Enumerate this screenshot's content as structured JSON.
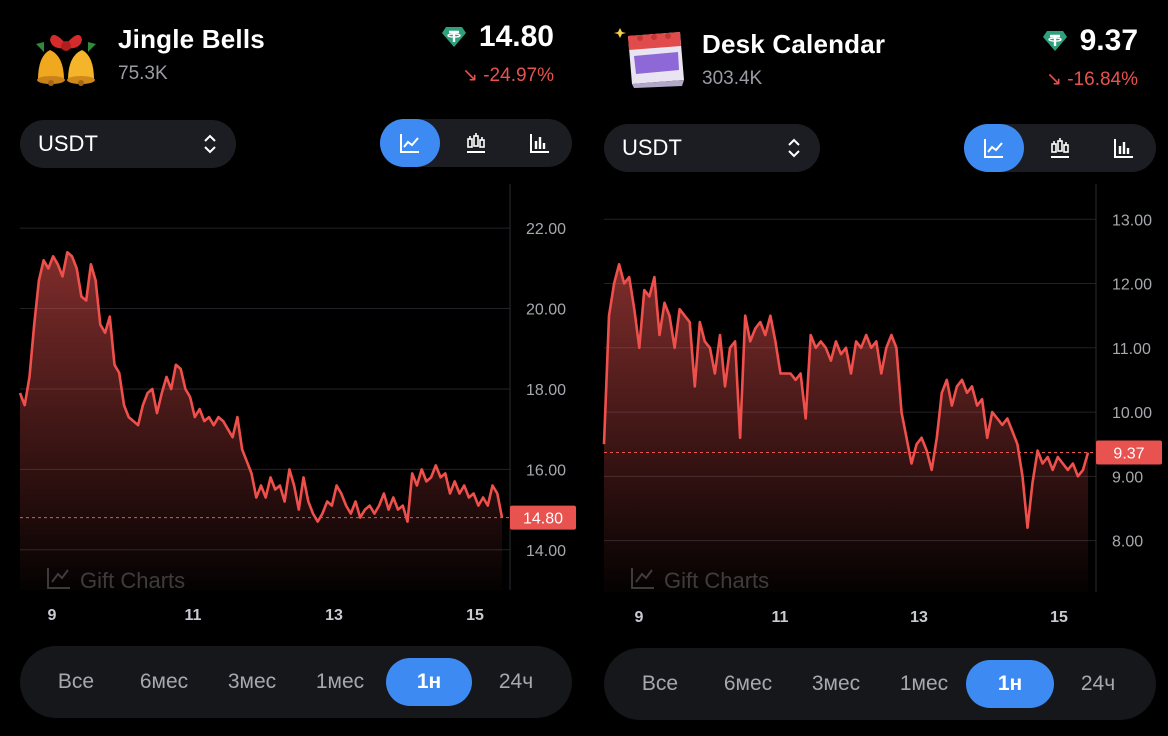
{
  "panels": [
    {
      "icon": "jingle-bells-icon",
      "name": "Jingle Bells",
      "volume": "75.3K",
      "price": "14.80",
      "change": "↘ -24.97%",
      "currency": "USDT",
      "chart_types": [
        "line-chart-icon",
        "candlestick-icon",
        "bar-chart-icon"
      ],
      "active_chart_type": 0,
      "ranges": [
        "Все",
        "6мес",
        "3мес",
        "1мес",
        "1н",
        "24ч"
      ],
      "active_range": 4,
      "chart_data": {
        "type": "area",
        "x_labels": [
          "9",
          "11",
          "13",
          "15"
        ],
        "y_labels": [
          "22.00",
          "20.00",
          "18.00",
          "16.00",
          "14.00"
        ],
        "ylim": [
          13.0,
          22.7
        ],
        "current_value": 14.8,
        "current_label": "14.80",
        "watermark": "Gift Charts",
        "values": [
          17.9,
          17.6,
          18.3,
          19.6,
          20.7,
          21.2,
          21.0,
          21.3,
          21.1,
          20.8,
          21.4,
          21.3,
          21.0,
          20.3,
          20.2,
          21.1,
          20.7,
          19.6,
          19.4,
          19.8,
          18.6,
          18.4,
          17.6,
          17.3,
          17.2,
          17.1,
          17.6,
          17.9,
          18.0,
          17.4,
          17.9,
          18.3,
          18.0,
          18.6,
          18.5,
          18.0,
          17.8,
          17.3,
          17.5,
          17.2,
          17.3,
          17.1,
          17.3,
          17.2,
          17.0,
          16.8,
          17.3,
          16.5,
          16.2,
          15.9,
          15.3,
          15.6,
          15.3,
          15.8,
          15.5,
          15.6,
          15.2,
          16.0,
          15.6,
          15.0,
          15.8,
          15.2,
          14.9,
          14.7,
          14.9,
          15.2,
          15.1,
          15.6,
          15.4,
          15.1,
          14.9,
          15.2,
          14.8,
          15.0,
          15.1,
          14.9,
          15.1,
          15.4,
          15.0,
          15.3,
          15.0,
          15.1,
          14.7,
          15.9,
          15.6,
          16.0,
          15.7,
          15.8,
          16.1,
          15.8,
          15.9,
          15.4,
          15.7,
          15.4,
          15.6,
          15.3,
          15.4,
          15.1,
          15.3,
          15.1,
          15.6,
          15.4,
          14.8
        ]
      }
    },
    {
      "icon": "desk-calendar-icon",
      "name": "Desk Calendar",
      "volume": "303.4K",
      "price": "9.37",
      "change": "↘ -16.84%",
      "currency": "USDT",
      "chart_types": [
        "line-chart-icon",
        "candlestick-icon",
        "bar-chart-icon"
      ],
      "active_chart_type": 0,
      "ranges": [
        "Все",
        "6мес",
        "3мес",
        "1мес",
        "1н",
        "24ч"
      ],
      "active_range": 4,
      "chart_data": {
        "type": "area",
        "x_labels": [
          "9",
          "11",
          "13",
          "15"
        ],
        "y_labels": [
          "13.00",
          "12.00",
          "11.00",
          "10.00",
          "9.00",
          "8.00"
        ],
        "ylim": [
          7.2,
          13.3
        ],
        "current_value": 9.37,
        "current_label": "9.37",
        "watermark": "Gift Charts",
        "values": [
          9.5,
          11.5,
          12.0,
          12.3,
          12.0,
          12.1,
          11.6,
          11.0,
          11.9,
          11.8,
          12.1,
          11.2,
          11.7,
          11.5,
          11.0,
          11.6,
          11.5,
          11.4,
          10.4,
          11.4,
          11.1,
          11.0,
          10.6,
          11.2,
          10.4,
          11.0,
          11.1,
          9.6,
          11.5,
          11.1,
          11.3,
          11.4,
          11.2,
          11.5,
          11.1,
          10.6,
          10.6,
          10.6,
          10.5,
          10.6,
          9.9,
          11.2,
          11.0,
          11.1,
          11.0,
          10.8,
          11.1,
          10.9,
          11.0,
          10.6,
          11.1,
          11.0,
          11.2,
          11.0,
          11.1,
          10.6,
          11.0,
          11.2,
          11.0,
          10.0,
          9.6,
          9.2,
          9.5,
          9.6,
          9.4,
          9.1,
          9.6,
          10.3,
          10.5,
          10.1,
          10.4,
          10.5,
          10.3,
          10.4,
          10.1,
          10.2,
          9.6,
          10.0,
          9.9,
          9.8,
          9.9,
          9.7,
          9.5,
          9.0,
          8.2,
          8.9,
          9.4,
          9.2,
          9.3,
          9.1,
          9.3,
          9.2,
          9.1,
          9.2,
          9.0,
          9.1,
          9.37
        ]
      }
    }
  ]
}
